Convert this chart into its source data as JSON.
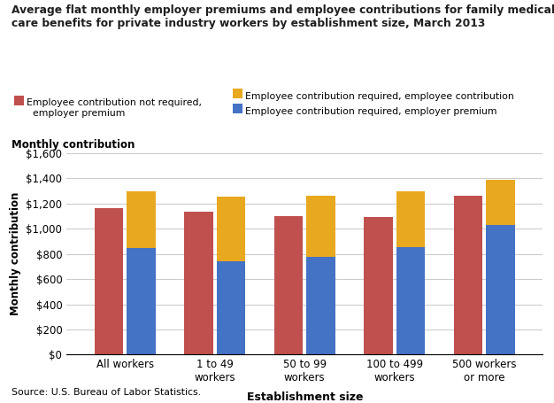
{
  "title_line1": "Average flat monthly employer premiums and employee contributions for family medical",
  "title_line2": "care benefits for private industry workers by establishment size, March 2013",
  "categories": [
    "All workers",
    "1 to 49\nworkers",
    "50 to 99\nworkers",
    "100 to 499\nworkers",
    "500 workers\nor more"
  ],
  "red_values": [
    1165,
    1135,
    1100,
    1090,
    1265
  ],
  "blue_values": [
    850,
    740,
    775,
    855,
    1030
  ],
  "yellow_values": [
    450,
    515,
    490,
    445,
    355
  ],
  "red_color": "#C0504D",
  "blue_color": "#4472C4",
  "yellow_color": "#E8A820",
  "ylabel": "Monthly contribution",
  "xlabel": "Establishment size",
  "ylim": [
    0,
    1600
  ],
  "yticks": [
    0,
    200,
    400,
    600,
    800,
    1000,
    1200,
    1400,
    1600
  ],
  "ytick_labels": [
    "$0",
    "$200",
    "$400",
    "$600",
    "$800",
    "$1,000",
    "$1,200",
    "$1,400",
    "$1,600"
  ],
  "legend": [
    {
      "label": "Employee contribution not required,\nemployer premium",
      "color": "#C0504D"
    },
    {
      "label": "Employee contribution required, employee contribution",
      "color": "#E8A820"
    },
    {
      "label": "Employee contribution required, employer premium",
      "color": "#4472C4"
    }
  ],
  "source": "Source: U.S. Bureau of Labor Statistics.",
  "bar_width": 0.32
}
